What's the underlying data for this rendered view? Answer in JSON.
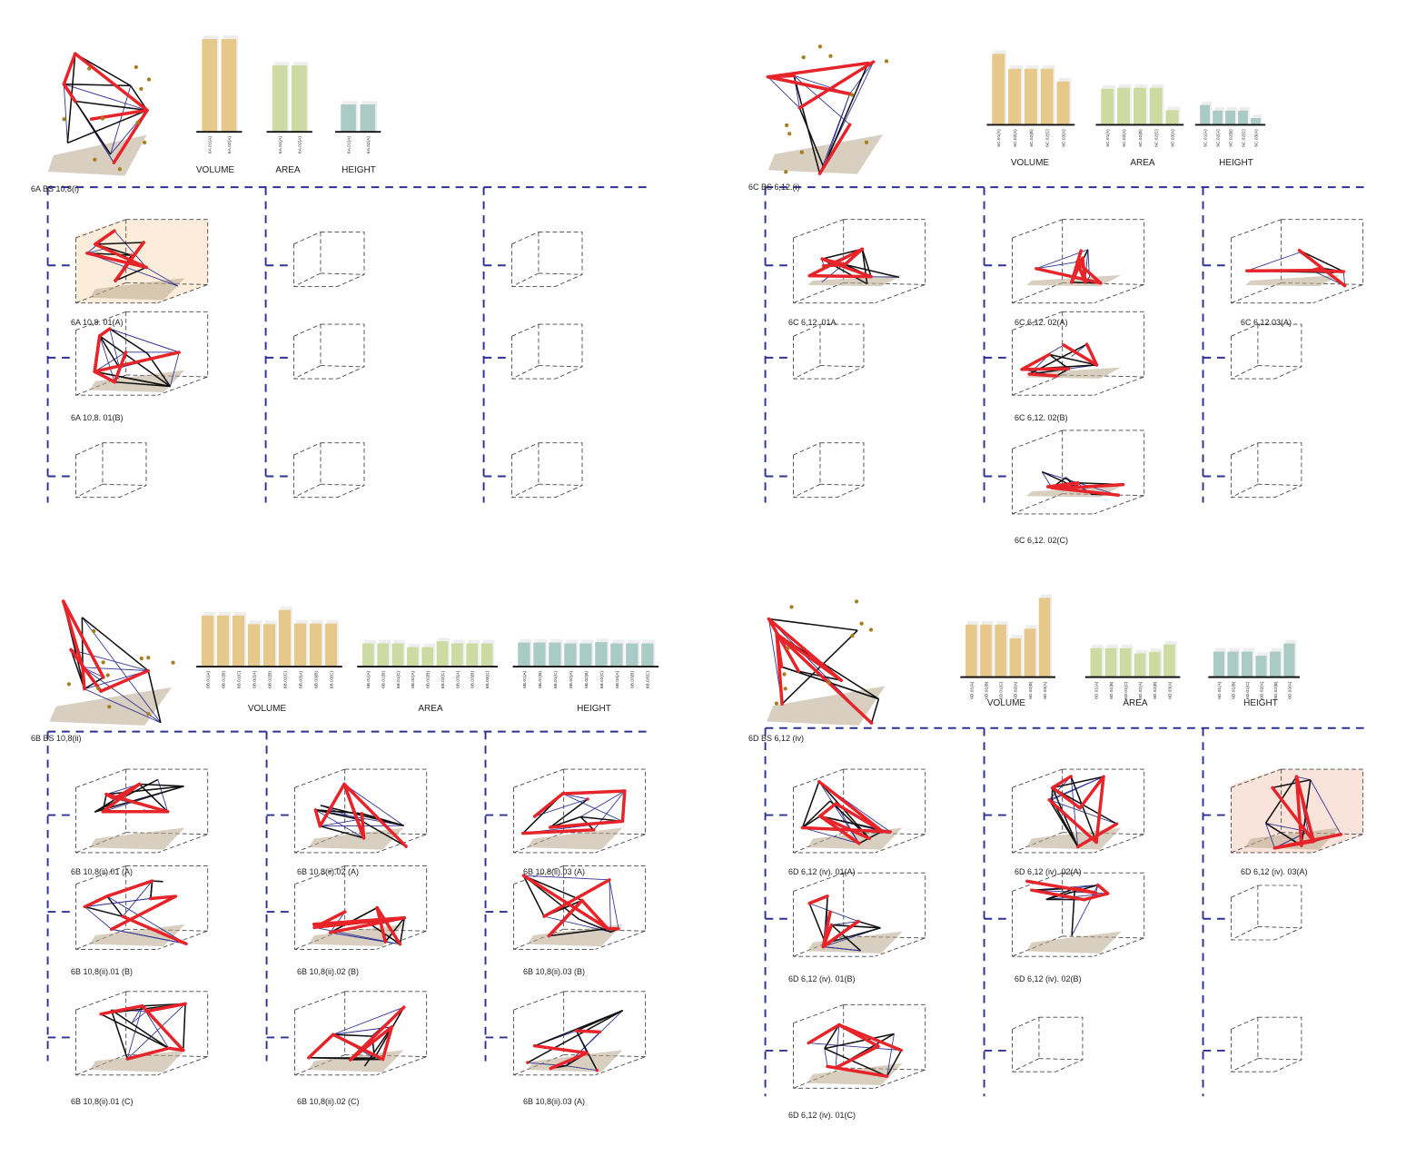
{
  "colors": {
    "volume": "#e6c88a",
    "area": "#cddba3",
    "height": "#a9cac5",
    "dash": "#2e3192",
    "brace": "#e62429",
    "cable": "#111111",
    "tie": "#2e3192",
    "base": "#b9a88e"
  },
  "quadrants": [
    {
      "id": "6A",
      "title": "6A BS 10,8(i)",
      "charts": {
        "volume": {
          "label": "VOLUME",
          "categories": [
            "6A.01(A)",
            "6A.02(A)"
          ],
          "values": [
            0.96,
            0.96
          ]
        },
        "area": {
          "label": "AREA",
          "categories": [
            "6A.01(A)",
            "6A.02(A)"
          ],
          "values": [
            0.84,
            0.84
          ]
        },
        "height": {
          "label": "HEIGHT",
          "categories": [
            "6A.01(A)",
            "6A.02(A)"
          ],
          "values": [
            0.52,
            0.52
          ]
        }
      },
      "labels": [
        "6A 10,8. 01(A)",
        "6A 10,8. 01(B)"
      ],
      "highlight": "orange"
    },
    {
      "id": "6C",
      "title": "6C BS 6,12.(i)",
      "charts": {
        "volume": {
          "label": "VOLUME",
          "categories": [
            "6C.01(A)",
            "6C.02(A)",
            "6C.02(B)",
            "6C.02(C)",
            "6C.03(A)"
          ],
          "values": [
            0.95,
            0.75,
            0.75,
            0.75,
            0.58
          ]
        },
        "area": {
          "label": "AREA",
          "categories": [
            "6C.01(A)",
            "6C.02(A)",
            "6C.02(B)",
            "6C.02(C)",
            "6C.03(A)"
          ],
          "values": [
            0.66,
            0.68,
            0.68,
            0.68,
            0.27
          ]
        },
        "height": {
          "label": "HEIGHT",
          "categories": [
            "6C.01(A)",
            "6C.02(A)",
            "6C.02(B)",
            "6C.02(C)",
            "6C.03(A)"
          ],
          "values": [
            0.5,
            0.36,
            0.36,
            0.36,
            0.17
          ]
        }
      },
      "labels": [
        "6C 6,12. 01A",
        "6C 6,12. 02(A)",
        "6C 6,12.03(A)",
        "6C 6,12. 02(B)",
        "6C 6,12. 02(C)"
      ]
    },
    {
      "id": "6B",
      "title": "6B BS 10,8(ii)",
      "charts": {
        "volume": {
          "label": "VOLUME",
          "categories": [
            "6B.01(A)",
            "6B.01(B)",
            "6B.01(C)",
            "6B.02(A)",
            "6B.02(B)",
            "6B.02(C)",
            "6B.03(A)",
            "6B.03(B)",
            "6B.03(C)"
          ],
          "values": [
            0.83,
            0.83,
            0.83,
            0.69,
            0.69,
            0.92,
            0.7,
            0.7,
            0.7
          ]
        },
        "area": {
          "label": "AREA",
          "categories": [
            "6B.01(A)",
            "6B.01(B)",
            "6B.01(C)",
            "6B.02(A)",
            "6B.02(B)",
            "6B.02(C)",
            "6B.03(A)",
            "6B.03(B)",
            "6B.03(C)"
          ],
          "values": [
            0.55,
            0.55,
            0.55,
            0.46,
            0.46,
            0.6,
            0.55,
            0.55,
            0.55
          ]
        },
        "height": {
          "label": "HEIGHT",
          "categories": [
            "6B.01(A)",
            "6B.01(B)",
            "6B.01(C)",
            "6B.02(A)",
            "6B.02(B)",
            "6B.02(C)",
            "6B.03(A)",
            "6B.03(B)",
            "6B.03(C)"
          ],
          "values": [
            0.57,
            0.57,
            0.57,
            0.55,
            0.55,
            0.58,
            0.55,
            0.55,
            0.55
          ]
        }
      },
      "labels": [
        "6B 10,8(ii).01 (A)",
        "6B 10,8(ii).02 (A)",
        "6B 10,8(ii).03 (A)",
        "6B 10,8(ii).01 (B)",
        "6B 10,8(ii).02 (B)",
        "6B 10,8(ii).03 (B)",
        "6B 10,8(ii).01 (C)",
        "6B 10,8(ii).02 (C)",
        "6B 10,8(ii).03 (A)"
      ]
    },
    {
      "id": "6D",
      "title": "6D BS 6,12 (iv)",
      "charts": {
        "volume": {
          "label": "VOLUME",
          "categories": [
            "6D.01(A)",
            "6D.01(B)",
            "6D.01(C)",
            "6D.02(A)",
            "6D.02(B)",
            "6D.03(A)"
          ],
          "values": [
            0.65,
            0.65,
            0.65,
            0.48,
            0.6,
            0.98
          ]
        },
        "area": {
          "label": "AREA",
          "categories": [
            "6D.01(A)",
            "6D.01(B)",
            "6D.01(C)",
            "6D.02(A)",
            "6D.02(B)",
            "6D.03(A)"
          ],
          "values": [
            0.55,
            0.55,
            0.55,
            0.45,
            0.48,
            0.62
          ]
        },
        "height": {
          "label": "HEIGHT",
          "categories": [
            "6D.01(A)",
            "6D.01(B)",
            "6D.01(C)",
            "6D.02(A)",
            "6D.02(B)",
            "6D.03(A)"
          ],
          "values": [
            0.5,
            0.5,
            0.5,
            0.42,
            0.5,
            0.66
          ]
        }
      },
      "labels": [
        "6D 6,12 (iv). 01(A)",
        "6D 6,12 (iv). 02(A)",
        "6D 6,12 (iv). 03(A)",
        "6D 6,12 (iv). 01(B)",
        "6D 6,12 (iv). 02(B)",
        "6D 6,12 (iv). 01(C)"
      ],
      "highlight": "pink"
    }
  ]
}
